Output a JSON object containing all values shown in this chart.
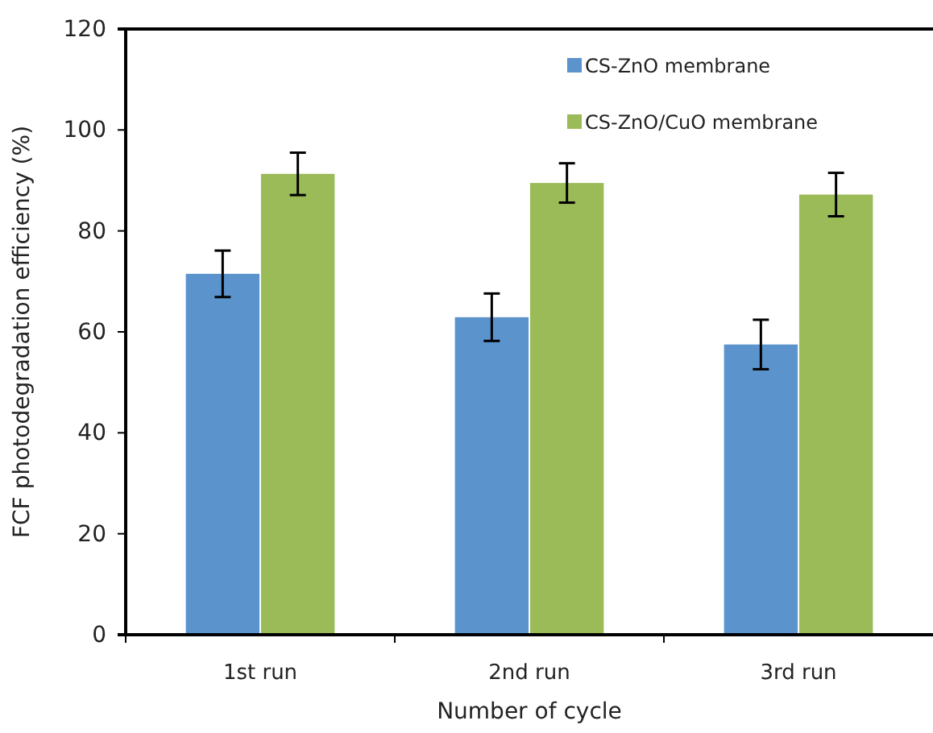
{
  "chart_data": {
    "type": "bar",
    "xlabel": "Number of cycle",
    "ylabel": "FCF photodegradation efficiency (%)",
    "categories": [
      "1st run",
      "2nd run",
      "3rd run"
    ],
    "series": [
      {
        "name": "CS-ZnO membrane",
        "color": "#5b93cd",
        "values": [
          71.5,
          62.9,
          57.5
        ],
        "errors": [
          4.6,
          4.7,
          4.9
        ]
      },
      {
        "name": "CS-ZnO/CuO membrane",
        "color": "#9bbb59",
        "values": [
          91.3,
          89.5,
          87.2
        ],
        "errors": [
          4.2,
          3.9,
          4.3
        ]
      }
    ],
    "ylim": [
      0,
      120
    ],
    "yticks": [
      0,
      20,
      40,
      60,
      80,
      100,
      120
    ],
    "grid": false,
    "legend": "top right"
  }
}
